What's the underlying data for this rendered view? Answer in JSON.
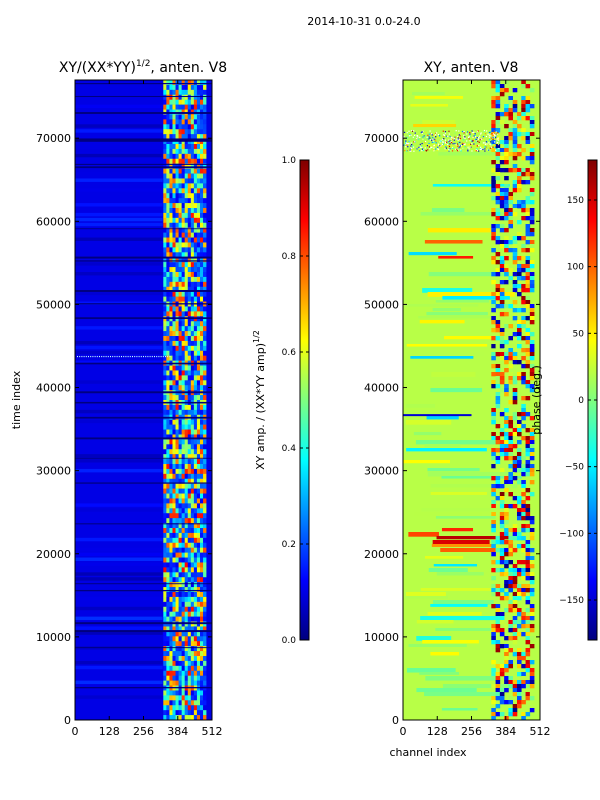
{
  "suptitle": "2014-10-31 0.0-24.0",
  "colors": {
    "jet": [
      "#00007f",
      "#0000ff",
      "#007fff",
      "#00ffff",
      "#7fff7f",
      "#ffff00",
      "#ff7f00",
      "#ff0000",
      "#7f0000"
    ]
  },
  "chart_data": [
    {
      "type": "heatmap",
      "title_main": "XY/(XX*YY)",
      "title_sup": "1/2",
      "title_tail": ", anten. V8",
      "xlabel": "",
      "ylabel": "time index",
      "xlim": [
        0,
        512
      ],
      "ylim": [
        0,
        77000
      ],
      "xticks": [
        0,
        128,
        256,
        384,
        512
      ],
      "yticks": [
        0,
        10000,
        20000,
        30000,
        40000,
        50000,
        60000,
        70000
      ],
      "colorbar": {
        "label_main": "XY amp. / (XX*YY amp)",
        "label_sup": "1/2",
        "range": [
          0.0,
          1.0
        ],
        "ticks": [
          0.0,
          0.2,
          0.4,
          0.6,
          0.8,
          1.0
        ],
        "tick_labels": [
          "0.0",
          "0.2",
          "0.4",
          "0.6",
          "0.8",
          "1.0"
        ]
      },
      "pattern": "mostly dark blue (~0.1) below channel ~330; bright banded green/yellow (0.3-0.8) in channels ~330-490"
    },
    {
      "type": "heatmap",
      "title": "XY, anten. V8",
      "xlabel": "channel index",
      "ylabel": "",
      "xlim": [
        0,
        512
      ],
      "ylim": [
        0,
        77000
      ],
      "xticks": [
        0,
        128,
        256,
        384,
        512
      ],
      "yticks": [
        0,
        10000,
        20000,
        30000,
        40000,
        50000,
        60000,
        70000
      ],
      "colorbar": {
        "label": "phase (deg.)",
        "range": [
          -180,
          180
        ],
        "ticks": [
          -150,
          -100,
          -50,
          0,
          50,
          100,
          150
        ],
        "tick_labels": [
          "−150",
          "−100",
          "−50",
          "0",
          "50",
          "100",
          "150"
        ]
      },
      "pattern": "mostly yellow-green (~20 deg) with horizontal streaks; red/orange patches near 56000-58000 and 20000-24000; mixed red/blue structure in channels ~330-490"
    }
  ]
}
